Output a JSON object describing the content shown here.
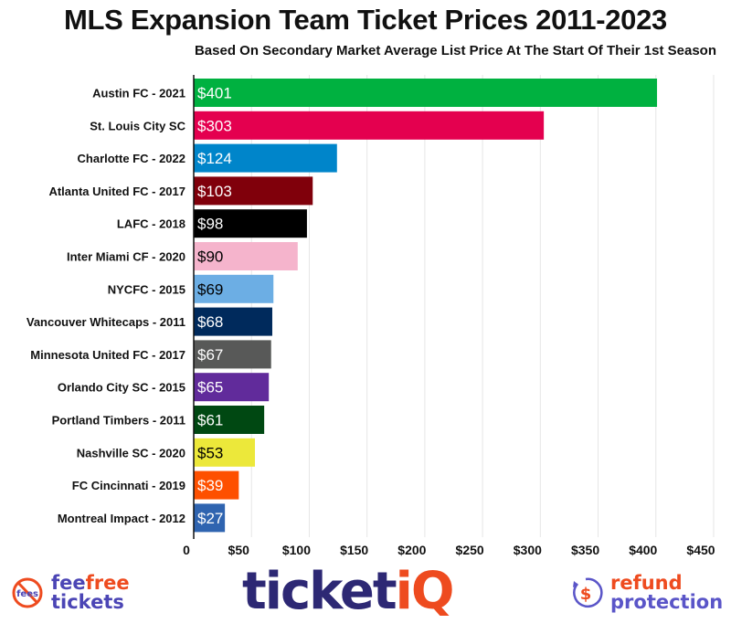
{
  "chart_data": {
    "type": "bar",
    "orientation": "horizontal",
    "title": "MLS Expansion Team Ticket Prices 2011-2023",
    "subtitle": "Based On Secondary Market Average List Price At The Start Of Their 1st Season",
    "xlabel": "",
    "ylabel": "",
    "xlim": [
      0,
      450
    ],
    "grid": true,
    "x_ticks": [
      "0",
      "$50",
      "$100",
      "$150",
      "$200",
      "$250",
      "$300",
      "$350",
      "$400",
      "$450"
    ],
    "categories": [
      "Austin FC - 2021",
      "St. Louis City SC",
      "Charlotte FC - 2022",
      "Atlanta United FC - 2017",
      "LAFC - 2018",
      "Inter Miami CF - 2020",
      "NYCFC - 2015",
      "Vancouver Whitecaps - 2011",
      "Minnesota United FC - 2017",
      "Orlando City SC - 2015",
      "Portland Timbers - 2011",
      "Nashville SC - 2020",
      "FC Cincinnati - 2019",
      "Montreal Impact - 2012"
    ],
    "values": [
      401,
      303,
      124,
      103,
      98,
      90,
      69,
      68,
      67,
      65,
      61,
      53,
      39,
      27
    ],
    "data_labels": [
      "$401",
      "$303",
      "$124",
      "$103",
      "$98",
      "$90",
      "$69",
      "$68",
      "$67",
      "$65",
      "$61",
      "$53",
      "$39",
      "$27"
    ],
    "colors": [
      "#00b140",
      "#e4004f",
      "#0085ca",
      "#80000b",
      "#000000",
      "#f5b4cc",
      "#6caee4",
      "#002a5c",
      "#585958",
      "#612b9b",
      "#004812",
      "#ece83a",
      "#fe5000",
      "#2f64b0"
    ],
    "label_colors": [
      "#fff",
      "#fff",
      "#fff",
      "#fff",
      "#fff",
      "#000",
      "#000",
      "#fff",
      "#fff",
      "#fff",
      "#fff",
      "#000",
      "#fff",
      "#fff"
    ]
  },
  "logos": {
    "feefree": {
      "icon_text": "fees",
      "word1a": "fee",
      "word1b": "free",
      "word2": "tickets"
    },
    "ticketiq": {
      "a": "ticket",
      "b": "iQ"
    },
    "refund": {
      "line1": "refund",
      "line2": "protection",
      "icon": "dollar-refund-icon"
    }
  }
}
